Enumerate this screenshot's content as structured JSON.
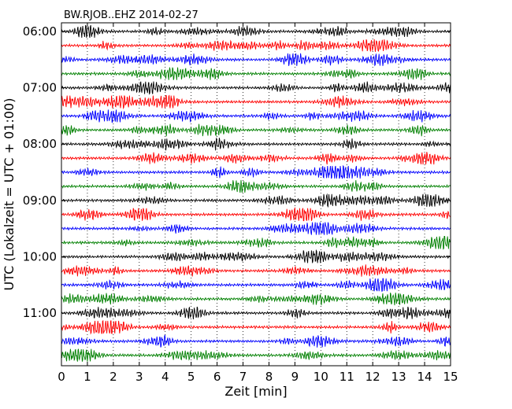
{
  "chart_data": {
    "type": "line",
    "title": "BW.RJOB..EHZ 2014-02-27",
    "xlabel": "Zeit  [min]",
    "ylabel": "UTC (Lokalzeit = UTC + 01:00)",
    "xlim": [
      0,
      15
    ],
    "x_ticks": [
      "0",
      "1",
      "2",
      "3",
      "4",
      "5",
      "6",
      "7",
      "8",
      "9",
      "10",
      "11",
      "12",
      "13",
      "14",
      "15"
    ],
    "y_tick_labels": [
      "06:00",
      "07:00",
      "08:00",
      "09:00",
      "10:00",
      "11:00"
    ],
    "minutes_per_trace": 15,
    "traces_per_hour": 4,
    "trace_count": 24,
    "vertical_grid": true,
    "grid_style": "dotted",
    "trace_colors": [
      "#000000",
      "#ff0000",
      "#0000ff",
      "#008000"
    ],
    "series": [
      {
        "start": "06:00"
      },
      {
        "start": "06:15"
      },
      {
        "start": "06:30"
      },
      {
        "start": "06:45"
      },
      {
        "start": "07:00"
      },
      {
        "start": "07:15"
      },
      {
        "start": "07:30"
      },
      {
        "start": "07:45"
      },
      {
        "start": "08:00"
      },
      {
        "start": "08:15"
      },
      {
        "start": "08:30"
      },
      {
        "start": "08:45"
      },
      {
        "start": "09:00"
      },
      {
        "start": "09:15"
      },
      {
        "start": "09:30"
      },
      {
        "start": "09:45"
      },
      {
        "start": "10:00"
      },
      {
        "start": "10:15"
      },
      {
        "start": "10:30"
      },
      {
        "start": "10:45"
      },
      {
        "start": "11:00"
      },
      {
        "start": "11:15"
      },
      {
        "start": "11:30"
      },
      {
        "start": "11:45"
      }
    ]
  }
}
